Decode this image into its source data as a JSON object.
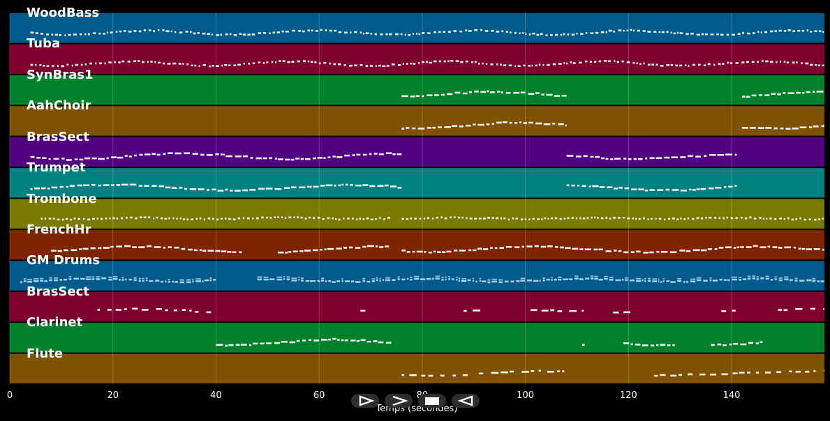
{
  "chart_data": {
    "type": "piano-roll",
    "xlabel": "Temps (secondes)",
    "xlim": [
      0,
      158
    ],
    "x_ticks": [
      0,
      20,
      40,
      60,
      80,
      100,
      120,
      140
    ],
    "tracks": [
      {
        "name": "WoodBass",
        "color": "#005A8C",
        "active": [
          [
            4,
            158
          ]
        ],
        "style": "dense-small"
      },
      {
        "name": "Tuba",
        "color": "#7E002E",
        "active": [
          [
            4,
            158
          ]
        ],
        "style": "dense-small"
      },
      {
        "name": "SynBras1",
        "color": "#00802A",
        "active": [
          [
            76,
            108
          ],
          [
            142,
            158
          ]
        ],
        "style": "melody"
      },
      {
        "name": "AahChoir",
        "color": "#7E5200",
        "active": [
          [
            76,
            108
          ],
          [
            142,
            158
          ]
        ],
        "style": "melody"
      },
      {
        "name": "BrasSect",
        "color": "#520080",
        "active": [
          [
            4,
            76
          ],
          [
            108,
            141
          ]
        ],
        "style": "melody"
      },
      {
        "name": "Trumpet",
        "color": "#008080",
        "active": [
          [
            4,
            76
          ],
          [
            108,
            141
          ]
        ],
        "style": "melody"
      },
      {
        "name": "Trombone",
        "color": "#7A7A00",
        "active": [
          [
            6,
            74
          ],
          [
            76,
            158
          ]
        ],
        "style": "rhythm"
      },
      {
        "name": "FrenchHr",
        "color": "#7E2400",
        "active": [
          [
            8,
            45
          ],
          [
            52,
            74
          ],
          [
            76,
            158
          ]
        ],
        "style": "melody"
      },
      {
        "name": "GM Drums",
        "color": "#005A8C",
        "active": [
          [
            2,
            40
          ],
          [
            48,
            158
          ]
        ],
        "style": "drums"
      },
      {
        "name": "BrasSect",
        "color": "#7E002E",
        "active": [
          [
            17,
            40
          ],
          [
            68,
            69
          ],
          [
            88,
            92
          ],
          [
            101,
            112
          ],
          [
            117,
            121
          ],
          [
            138,
            141
          ],
          [
            149,
            158
          ]
        ],
        "style": "sparse"
      },
      {
        "name": "Clarinet",
        "color": "#00802A",
        "active": [
          [
            40,
            74
          ],
          [
            111,
            112
          ],
          [
            119,
            129
          ],
          [
            136,
            146
          ]
        ],
        "style": "melody"
      },
      {
        "name": "Flute",
        "color": "#7E5200",
        "active": [
          [
            76,
            90
          ],
          [
            91,
            108
          ],
          [
            125,
            158
          ]
        ],
        "style": "sparse"
      }
    ],
    "grid": true
  },
  "controls": [
    {
      "name": "play",
      "icon": "play-icon"
    },
    {
      "name": "forward",
      "icon": "forward-icon"
    },
    {
      "name": "stop",
      "icon": "stop-icon"
    },
    {
      "name": "rewind",
      "icon": "rewind-icon"
    }
  ]
}
